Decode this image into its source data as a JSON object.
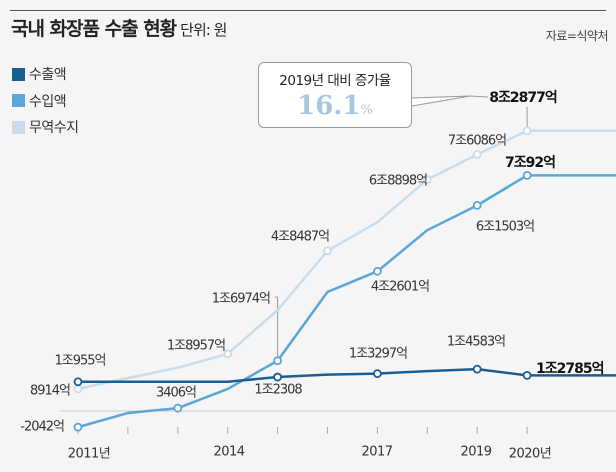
{
  "header": {
    "title": "국내 화장품 수출 현황",
    "unit": "단위: 원",
    "source": "자료=식약처"
  },
  "callout": {
    "heading": "2019년 대비 증가율",
    "value": "16.1",
    "suffix": "%"
  },
  "colors": {
    "export": "#1a5f93",
    "import": "#5aa6d8",
    "balance": "#c7dcec"
  },
  "chart_data": {
    "type": "line",
    "title": "국내 화장품 수출 현황",
    "unit": "억원",
    "x": [
      2011,
      2012,
      2013,
      2014,
      2015,
      2016,
      2017,
      2018,
      2019,
      2020
    ],
    "x_tick_labels": [
      "2011년",
      "2014",
      "2017",
      "2019",
      "2020년"
    ],
    "ylim": [
      -3000,
      90000
    ],
    "legend": "top-left",
    "series": [
      {
        "name": "수출액",
        "key": "export",
        "values": [
          10955,
          10955,
          10955,
          10955,
          12308,
          13000,
          13297,
          14000,
          14583,
          12785
        ],
        "markers": [
          2011,
          2015,
          2017,
          2019,
          2020
        ]
      },
      {
        "name": "수입액",
        "key": "import",
        "values": [
          -2042,
          2000,
          3406,
          8900,
          16974,
          36700,
          42601,
          54400,
          61503,
          70092
        ],
        "markers": [
          2011,
          2013,
          2015,
          2017,
          2019,
          2020
        ]
      },
      {
        "name": "무역수지",
        "key": "balance",
        "values": [
          8914,
          12000,
          15000,
          18957,
          31500,
          48487,
          56700,
          68898,
          76086,
          82877
        ],
        "markers": [
          2011,
          2014,
          2016,
          2018,
          2019,
          2020
        ]
      }
    ],
    "labels": {
      "b2011": "8914억",
      "e2011": "1조955억",
      "i2011": "-2042억",
      "i2013": "3406억",
      "b2014": "1조8957억",
      "i2015": "1조6974억",
      "e2015": "1조2308",
      "b2016": "4조8487억",
      "i2017": "4조2601억",
      "e2017": "1조3297억",
      "b2018": "6조8898억",
      "b2019": "7조6086억",
      "i2019": "6조1503억",
      "e2019": "1조4583억",
      "b2020": "8조2877억",
      "i2020": "7조92억",
      "e2020": "1조2785억"
    }
  }
}
